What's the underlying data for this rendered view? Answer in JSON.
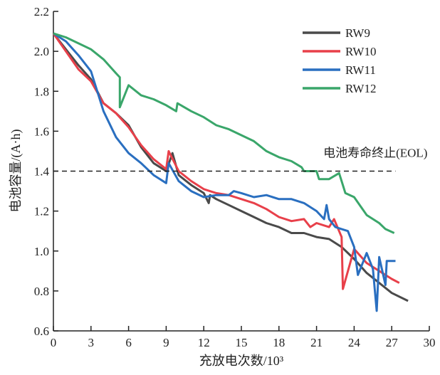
{
  "chart_data": {
    "type": "line",
    "title": "",
    "xlabel": "充放电次数/10³",
    "ylabel": "电池容量/(A·h)",
    "xlim": [
      0,
      30
    ],
    "ylim": [
      0.6,
      2.2
    ],
    "xticks": [
      "0",
      "3",
      "6",
      "9",
      "12",
      "15",
      "18",
      "21",
      "24",
      "27",
      "30"
    ],
    "yticks": [
      "0.6",
      "0.8",
      "1.0",
      "1.2",
      "1.4",
      "1.6",
      "1.8",
      "2.0",
      "2.2"
    ],
    "grid": false,
    "legend_position": "top-right",
    "annotation": {
      "text": "电池寿命终止(EOL)",
      "y": 1.4,
      "x_end": 27.3
    },
    "series": [
      {
        "name": "RW9",
        "color": "#4a4a4a",
        "points": [
          [
            0,
            2.09
          ],
          [
            2,
            1.93
          ],
          [
            3,
            1.86
          ],
          [
            4,
            1.74
          ],
          [
            5,
            1.69
          ],
          [
            6,
            1.63
          ],
          [
            7,
            1.52
          ],
          [
            7.5,
            1.48
          ],
          [
            8,
            1.44
          ],
          [
            9,
            1.4
          ],
          [
            9.5,
            1.49
          ],
          [
            10,
            1.38
          ],
          [
            11,
            1.33
          ],
          [
            12,
            1.29
          ],
          [
            12.4,
            1.24
          ],
          [
            12.5,
            1.28
          ],
          [
            13,
            1.26
          ],
          [
            14,
            1.23
          ],
          [
            15,
            1.2
          ],
          [
            16,
            1.17
          ],
          [
            17,
            1.14
          ],
          [
            18,
            1.12
          ],
          [
            19,
            1.09
          ],
          [
            20,
            1.09
          ],
          [
            21,
            1.07
          ],
          [
            22,
            1.06
          ],
          [
            23,
            1.02
          ],
          [
            24,
            0.96
          ],
          [
            25,
            0.89
          ],
          [
            26,
            0.84
          ],
          [
            27,
            0.79
          ],
          [
            28.3,
            0.75
          ]
        ]
      },
      {
        "name": "RW10",
        "color": "#e8404a",
        "points": [
          [
            0,
            2.09
          ],
          [
            2,
            1.91
          ],
          [
            3,
            1.85
          ],
          [
            4,
            1.74
          ],
          [
            5,
            1.69
          ],
          [
            6,
            1.62
          ],
          [
            7,
            1.53
          ],
          [
            8,
            1.46
          ],
          [
            9,
            1.41
          ],
          [
            9.2,
            1.5
          ],
          [
            10,
            1.4
          ],
          [
            11,
            1.35
          ],
          [
            12,
            1.31
          ],
          [
            13,
            1.29
          ],
          [
            14,
            1.28
          ],
          [
            15,
            1.26
          ],
          [
            16,
            1.24
          ],
          [
            17,
            1.21
          ],
          [
            18,
            1.17
          ],
          [
            19,
            1.15
          ],
          [
            20,
            1.16
          ],
          [
            20.5,
            1.12
          ],
          [
            21,
            1.14
          ],
          [
            22,
            1.12
          ],
          [
            22.4,
            1.16
          ],
          [
            23,
            1.07
          ],
          [
            23.1,
            0.81
          ],
          [
            24,
            1.01
          ],
          [
            25,
            0.94
          ],
          [
            26,
            0.9
          ],
          [
            27,
            0.86
          ],
          [
            27.6,
            0.84
          ]
        ]
      },
      {
        "name": "RW11",
        "color": "#2a6fc0",
        "points": [
          [
            0,
            2.09
          ],
          [
            1,
            2.05
          ],
          [
            2,
            1.98
          ],
          [
            3,
            1.9
          ],
          [
            4,
            1.7
          ],
          [
            5,
            1.57
          ],
          [
            6,
            1.49
          ],
          [
            7,
            1.44
          ],
          [
            8,
            1.38
          ],
          [
            9,
            1.34
          ],
          [
            9.2,
            1.44
          ],
          [
            10,
            1.35
          ],
          [
            11,
            1.3
          ],
          [
            12,
            1.27
          ],
          [
            13,
            1.28
          ],
          [
            14,
            1.28
          ],
          [
            14.4,
            1.3
          ],
          [
            15,
            1.29
          ],
          [
            16,
            1.27
          ],
          [
            17,
            1.28
          ],
          [
            18,
            1.26
          ],
          [
            19,
            1.26
          ],
          [
            20,
            1.24
          ],
          [
            21,
            1.2
          ],
          [
            21.6,
            1.16
          ],
          [
            21.8,
            1.23
          ],
          [
            22,
            1.16
          ],
          [
            22.5,
            1.12
          ],
          [
            23,
            1.11
          ],
          [
            23.5,
            1.1
          ],
          [
            24,
            1.02
          ],
          [
            24.3,
            0.88
          ],
          [
            25,
            0.99
          ],
          [
            25.5,
            0.91
          ],
          [
            25.8,
            0.7
          ],
          [
            26,
            0.97
          ],
          [
            26.5,
            0.83
          ],
          [
            26.6,
            0.95
          ],
          [
            27.3,
            0.95
          ]
        ]
      },
      {
        "name": "RW12",
        "color": "#3aa66a",
        "points": [
          [
            0,
            2.09
          ],
          [
            1,
            2.07
          ],
          [
            2,
            2.04
          ],
          [
            3,
            2.01
          ],
          [
            4,
            1.96
          ],
          [
            5,
            1.89
          ],
          [
            5.3,
            1.87
          ],
          [
            5.3,
            1.72
          ],
          [
            6,
            1.83
          ],
          [
            7,
            1.78
          ],
          [
            8,
            1.76
          ],
          [
            9,
            1.73
          ],
          [
            9.8,
            1.7
          ],
          [
            9.9,
            1.74
          ],
          [
            11,
            1.7
          ],
          [
            12,
            1.67
          ],
          [
            13,
            1.63
          ],
          [
            14,
            1.61
          ],
          [
            15,
            1.58
          ],
          [
            16,
            1.55
          ],
          [
            17,
            1.5
          ],
          [
            18,
            1.47
          ],
          [
            19,
            1.45
          ],
          [
            19.8,
            1.42
          ],
          [
            20,
            1.4
          ],
          [
            21,
            1.4
          ],
          [
            21.2,
            1.36
          ],
          [
            22,
            1.36
          ],
          [
            22.8,
            1.39
          ],
          [
            23.3,
            1.29
          ],
          [
            24,
            1.27
          ],
          [
            25,
            1.18
          ],
          [
            26,
            1.14
          ],
          [
            26.5,
            1.11
          ],
          [
            27.2,
            1.09
          ]
        ]
      }
    ]
  }
}
